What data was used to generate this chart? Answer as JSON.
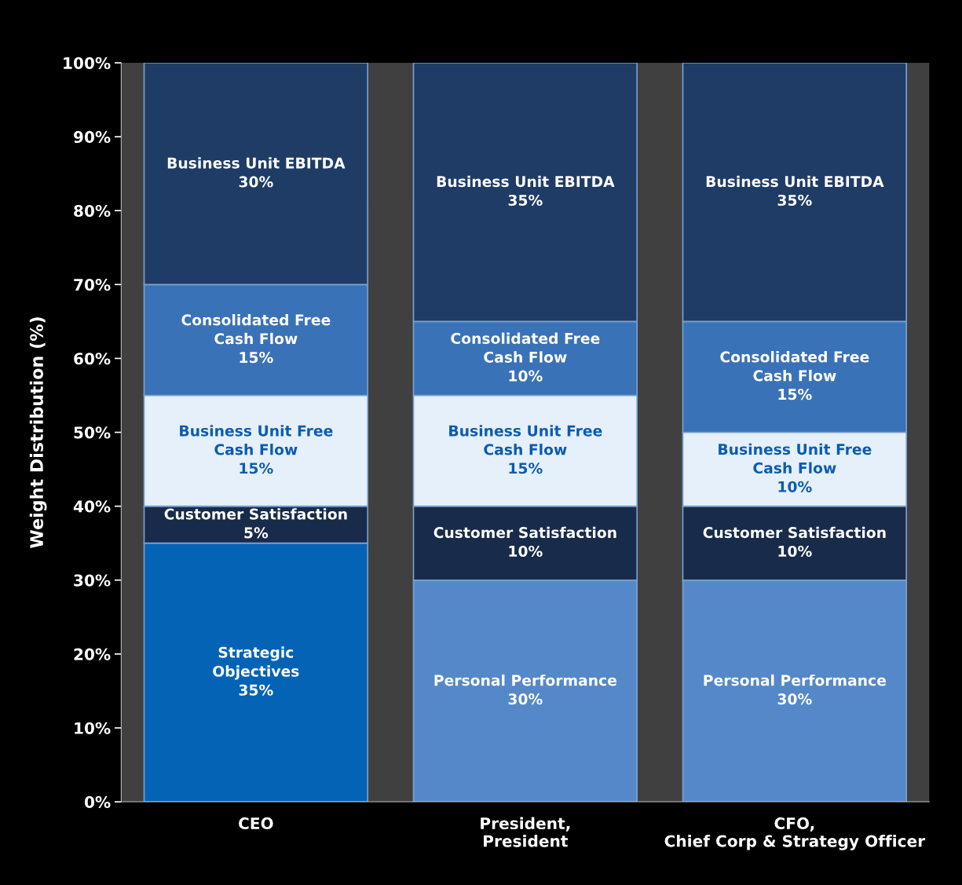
{
  "chart_data": {
    "type": "bar",
    "stacked": true,
    "ylabel": "Weight Distribution (%)",
    "categories": [
      "CEO",
      "President,\nPresident",
      "CFO,\nChief Corp & Strategy Officer"
    ],
    "ylim": [
      0,
      100
    ],
    "yticks": [
      {
        "value": 0,
        "label": "0%"
      },
      {
        "value": 10,
        "label": "10%"
      },
      {
        "value": 20,
        "label": "20%"
      },
      {
        "value": 30,
        "label": "30%"
      },
      {
        "value": 40,
        "label": "40%"
      },
      {
        "value": 50,
        "label": "50%"
      },
      {
        "value": 60,
        "label": "60%"
      },
      {
        "value": 70,
        "label": "70%"
      },
      {
        "value": 80,
        "label": "80%"
      },
      {
        "value": 90,
        "label": "90%"
      },
      {
        "value": 100,
        "label": "100%"
      }
    ],
    "grid": false,
    "series": [
      {
        "name": "Strategic\nObjectives",
        "color": "#0563b5",
        "values": [
          35,
          null,
          null
        ],
        "value_labels": [
          "35%",
          null,
          null
        ]
      },
      {
        "name": "Personal Performance",
        "color": "#5588c8",
        "values": [
          null,
          30,
          30
        ],
        "value_labels": [
          null,
          "30%",
          "30%"
        ]
      },
      {
        "name": "Customer Satisfaction",
        "color": "#182b4a",
        "values": [
          5,
          10,
          10
        ],
        "value_labels": [
          "5%",
          "10%",
          "10%"
        ]
      },
      {
        "name": "Business Unit Free\nCash Flow",
        "color": "#e6f0fa",
        "values": [
          15,
          15,
          10
        ],
        "value_labels": [
          "15%",
          "15%",
          "10%"
        ]
      },
      {
        "name": "Consolidated Free\nCash Flow",
        "color": "#3a72b8",
        "values": [
          15,
          10,
          15
        ],
        "value_labels": [
          "15%",
          "10%",
          "15%"
        ]
      },
      {
        "name": "Business Unit EBITDA",
        "color": "#1f3c66",
        "values": [
          30,
          35,
          35
        ],
        "value_labels": [
          "30%",
          "35%",
          "35%"
        ]
      }
    ]
  }
}
